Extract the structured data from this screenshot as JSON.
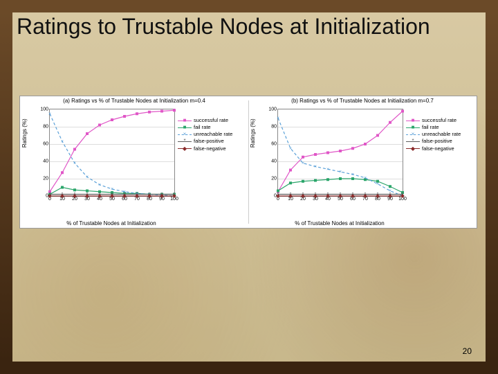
{
  "slide": {
    "title": "Ratings to Trustable Nodes at Initialization",
    "page_number": "20",
    "background_border_color": "#5a3a1a",
    "background_gradient_top": "#d8c9a3",
    "background_gradient_bottom": "#c8b88c"
  },
  "axis": {
    "ylabel": "Ratings (%)",
    "xlabel": "% of Trustable Nodes at Initialization",
    "ylim": [
      0,
      100
    ],
    "ytick_step": 20,
    "yticks": [
      0,
      20,
      40,
      60,
      80,
      100
    ],
    "xlim": [
      0,
      100
    ],
    "xtick_step": 10,
    "xticks": [
      0,
      10,
      20,
      30,
      40,
      50,
      60,
      70,
      80,
      90,
      100
    ],
    "grid_color": "#dddddd",
    "plot_border_color": "#888888",
    "tick_fontsize": 7,
    "label_fontsize": 8
  },
  "legend": {
    "items": [
      {
        "key": "success",
        "label": "successful rate",
        "marker": "■",
        "color": "#e056c7",
        "line_style": "solid"
      },
      {
        "key": "fail",
        "label": "fail rate",
        "marker": "■",
        "color": "#2aa56a",
        "line_style": "solid"
      },
      {
        "key": "unreach",
        "label": "unreachable rate",
        "marker": "×",
        "color": "#5aa0d8",
        "line_style": "dashed"
      },
      {
        "key": "fpos",
        "label": "false-positive",
        "marker": "*",
        "color": "#5e5e5e",
        "line_style": "solid"
      },
      {
        "key": "fneg",
        "label": "false-negative",
        "marker": "◆",
        "color": "#8a2a2a",
        "line_style": "solid"
      }
    ]
  },
  "charts": [
    {
      "id": "chart-a",
      "title": "(a) Ratings vs % of Trustable Nodes at Initialization m=0.4",
      "type": "line",
      "x": [
        0,
        10,
        20,
        30,
        40,
        50,
        60,
        70,
        80,
        90,
        100
      ],
      "series": {
        "success": [
          5,
          27,
          54,
          72,
          82,
          88,
          92,
          95,
          97,
          98,
          99
        ],
        "fail": [
          2,
          10,
          7,
          6,
          5,
          4,
          3,
          3,
          2,
          2,
          2
        ],
        "unreach": [
          95,
          63,
          38,
          22,
          13,
          8,
          5,
          3,
          2,
          1,
          0
        ],
        "fpos": [
          2,
          2,
          2,
          2,
          2,
          2,
          2,
          2,
          2,
          2,
          2
        ],
        "fneg": [
          0,
          0,
          0,
          0,
          0,
          0,
          0,
          0,
          0,
          0,
          0
        ]
      }
    },
    {
      "id": "chart-b",
      "title": "(b) Ratings vs % of Trustable Nodes at Initialization m=0.7",
      "type": "line",
      "x": [
        0,
        10,
        20,
        30,
        40,
        50,
        60,
        70,
        80,
        90,
        100
      ],
      "series": {
        "success": [
          5,
          30,
          45,
          48,
          50,
          52,
          55,
          60,
          70,
          85,
          98
        ],
        "fail": [
          6,
          15,
          17,
          18,
          19,
          20,
          20,
          19,
          17,
          11,
          4
        ],
        "unreach": [
          90,
          55,
          38,
          34,
          31,
          28,
          25,
          21,
          14,
          6,
          0
        ],
        "fpos": [
          2,
          2,
          2,
          2,
          2,
          2,
          2,
          2,
          2,
          2,
          2
        ],
        "fneg": [
          0,
          0,
          0,
          0,
          0,
          0,
          0,
          0,
          0,
          0,
          0
        ]
      }
    }
  ],
  "style": {
    "marker_size": 4,
    "line_width": 1.2,
    "chart_background": "#ffffff"
  }
}
